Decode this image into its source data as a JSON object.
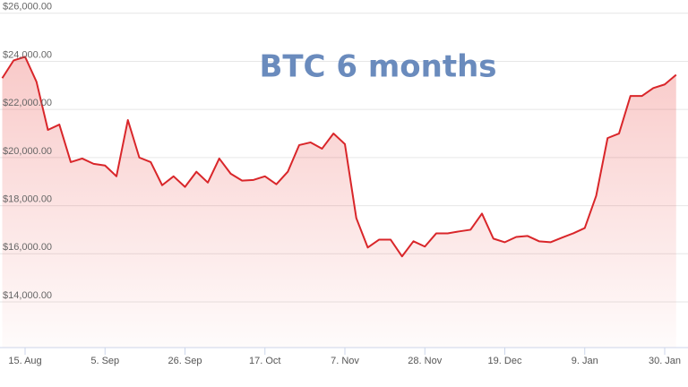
{
  "chart_data": {
    "type": "line",
    "title": "BTC 6 months",
    "title_color": "#6a8bbd",
    "categories": [
      null,
      null,
      "15. Aug",
      null,
      null,
      null,
      null,
      null,
      null,
      "5. Sep",
      null,
      null,
      null,
      null,
      null,
      null,
      "26. Sep",
      null,
      null,
      null,
      null,
      null,
      null,
      "17. Oct",
      null,
      null,
      null,
      null,
      null,
      null,
      "7. Nov",
      null,
      null,
      null,
      null,
      null,
      null,
      "28. Nov",
      null,
      null,
      null,
      null,
      null,
      null,
      "19. Dec",
      null,
      null,
      null,
      null,
      null,
      null,
      "9. Jan",
      null,
      null,
      null,
      null,
      null,
      null,
      "30. Jan",
      null
    ],
    "series": [
      {
        "color": "#d9262a",
        "values": [
          23300,
          24040,
          24190,
          23150,
          21150,
          21370,
          19810,
          19960,
          19740,
          19670,
          19220,
          21560,
          20000,
          19810,
          18850,
          19220,
          18780,
          19410,
          18960,
          19960,
          19330,
          19040,
          19070,
          19220,
          18890,
          19410,
          20520,
          20630,
          20370,
          21000,
          20560,
          17480,
          16260,
          16590,
          16590,
          15890,
          16520,
          16300,
          16850,
          16850,
          16930,
          17000,
          17670,
          16630,
          16480,
          16700,
          16740,
          16520,
          16480,
          16670,
          16850,
          17070,
          18410,
          20810,
          21000,
          22560,
          22560,
          22890,
          23040,
          23440
        ]
      }
    ],
    "ylim": [
      12100,
      26550
    ],
    "yticks": [
      {
        "value": 14000,
        "label": "$14,000.00"
      },
      {
        "value": 16000,
        "label": "$16,000.00"
      },
      {
        "value": 18000,
        "label": "$18,000.00"
      },
      {
        "value": 20000,
        "label": "$20,000.00"
      },
      {
        "value": 22000,
        "label": "$22,000.00"
      },
      {
        "value": 24000,
        "label": "$24,000.00"
      },
      {
        "value": 26000,
        "label": "$26,000.00"
      }
    ],
    "grid": true
  }
}
